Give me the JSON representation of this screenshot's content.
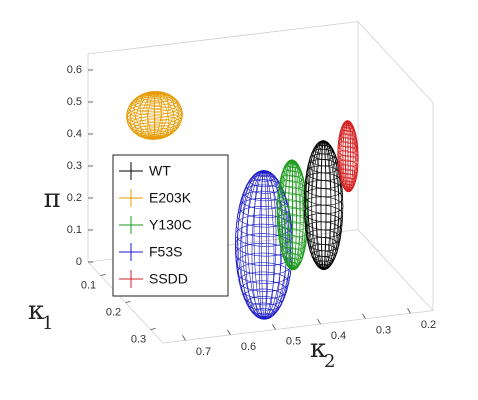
{
  "chart_data": {
    "type": "ellipsoid3d",
    "xlabel": {
      "symbol": "κ",
      "sub": "2"
    },
    "ylabel": {
      "symbol": "κ",
      "sub": "1"
    },
    "zlabel": "π",
    "xlim": [
      0.15,
      0.75
    ],
    "xticks": [
      0.2,
      0.3,
      0.4,
      0.5,
      0.6,
      0.7
    ],
    "ylim": [
      0.05,
      0.35
    ],
    "yticks": [
      0.1,
      0.2,
      0.3
    ],
    "zlim": [
      0,
      0.65
    ],
    "zticks": [
      0,
      0.1,
      0.2,
      0.3,
      0.4,
      0.5,
      0.6
    ],
    "series": [
      {
        "name": "WT",
        "color": "#000000",
        "center": [
          0.31,
          0.2,
          0.23
        ],
        "radii": [
          0.04,
          0.03,
          0.2
        ]
      },
      {
        "name": "E203K",
        "color": "#e69a00",
        "center": [
          0.63,
          0.1,
          0.48
        ],
        "radii": [
          0.06,
          0.03,
          0.07
        ]
      },
      {
        "name": "Y130C",
        "color": "#1a9a1a",
        "center": [
          0.39,
          0.22,
          0.23
        ],
        "radii": [
          0.03,
          0.03,
          0.17
        ]
      },
      {
        "name": "F53S",
        "color": "#1a1ac8",
        "center": [
          0.47,
          0.25,
          0.175
        ],
        "radii": [
          0.06,
          0.04,
          0.23
        ]
      },
      {
        "name": "SSDD",
        "color": "#d42020",
        "center": [
          0.2,
          0.1,
          0.28
        ],
        "radii": [
          0.02,
          0.02,
          0.11
        ]
      }
    ]
  }
}
